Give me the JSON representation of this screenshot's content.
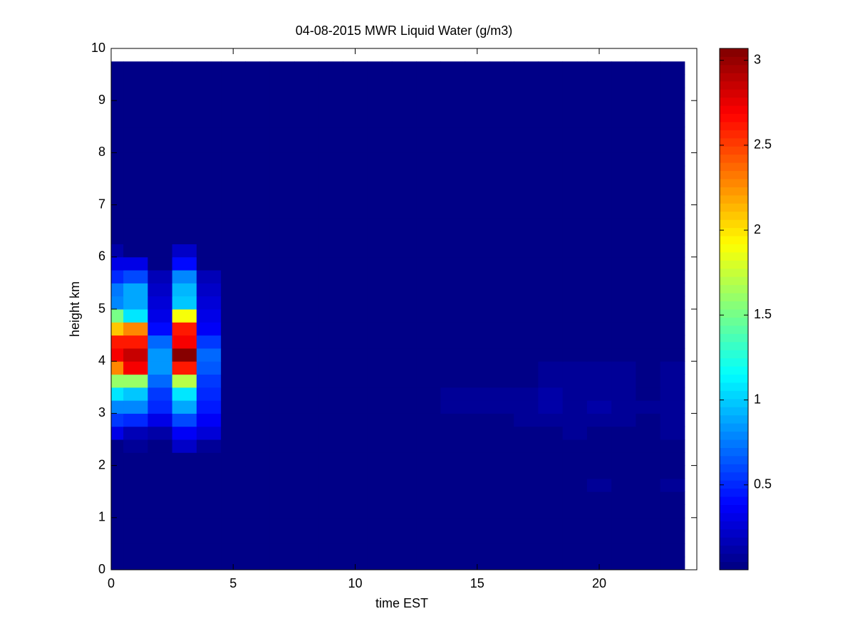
{
  "chart_data": {
    "type": "heatmap",
    "title": "04-08-2015 MWR Liquid Water (g/m3)",
    "xlabel": "time EST",
    "ylabel": "height km",
    "colormap": "jet",
    "clim": [
      0,
      3.07
    ],
    "cticks": [
      0.5,
      1,
      {
        "value": 1.5,
        "label": "1.5"
      },
      2,
      {
        "value": 2.5,
        "label": "2.5"
      },
      3
    ],
    "xlim": [
      0,
      24
    ],
    "xticks": [
      0,
      5,
      10,
      15,
      20
    ],
    "ylim": [
      0,
      10
    ],
    "yticks": [
      0,
      1,
      2,
      3,
      4,
      5,
      6,
      7,
      8,
      9,
      10
    ],
    "x": [
      0,
      1,
      2,
      3,
      4,
      5,
      6,
      7,
      8,
      9,
      10,
      11,
      12,
      13,
      14,
      15,
      16,
      17,
      18,
      19,
      20,
      21,
      22,
      23
    ],
    "y": [
      0.125,
      0.375,
      0.625,
      0.875,
      1.125,
      1.375,
      1.625,
      1.875,
      2.125,
      2.375,
      2.625,
      2.875,
      3.125,
      3.375,
      3.625,
      3.875,
      4.125,
      4.375,
      4.625,
      4.875,
      5.125,
      5.375,
      5.625,
      5.875,
      6.125,
      6.375,
      6.625,
      6.875,
      7.125,
      7.375,
      7.625,
      7.875,
      8.125,
      8.375,
      8.625,
      8.875,
      9.125,
      9.375,
      9.625
    ],
    "values": [
      [
        0.02,
        0.02,
        0.02,
        0.02,
        0.02,
        0.02,
        0.02,
        0.02,
        0.02,
        0.02,
        0.02,
        0.02,
        0.02,
        0.02,
        0.02,
        0.02,
        0.02,
        0.02,
        0.02,
        0.02,
        0.02,
        0.02,
        0.02,
        0.02
      ],
      [
        0.02,
        0.02,
        0.02,
        0.02,
        0.02,
        0.02,
        0.02,
        0.02,
        0.02,
        0.02,
        0.02,
        0.02,
        0.02,
        0.02,
        0.02,
        0.02,
        0.02,
        0.02,
        0.02,
        0.02,
        0.02,
        0.02,
        0.02,
        0.02
      ],
      [
        0.02,
        0.02,
        0.02,
        0.02,
        0.02,
        0.02,
        0.02,
        0.02,
        0.02,
        0.02,
        0.02,
        0.02,
        0.02,
        0.02,
        0.02,
        0.02,
        0.02,
        0.02,
        0.02,
        0.02,
        0.02,
        0.02,
        0.02,
        0.02
      ],
      [
        0.02,
        0.02,
        0.02,
        0.02,
        0.02,
        0.02,
        0.02,
        0.02,
        0.02,
        0.02,
        0.02,
        0.02,
        0.02,
        0.02,
        0.02,
        0.02,
        0.02,
        0.02,
        0.02,
        0.02,
        0.02,
        0.02,
        0.02,
        0.02
      ],
      [
        0.02,
        0.02,
        0.02,
        0.02,
        0.02,
        0.02,
        0.02,
        0.02,
        0.02,
        0.02,
        0.02,
        0.02,
        0.02,
        0.02,
        0.02,
        0.02,
        0.02,
        0.02,
        0.02,
        0.02,
        0.02,
        0.02,
        0.02,
        0.02
      ],
      [
        0.02,
        0.02,
        0.02,
        0.02,
        0.02,
        0.02,
        0.02,
        0.02,
        0.02,
        0.02,
        0.02,
        0.02,
        0.02,
        0.02,
        0.02,
        0.02,
        0.02,
        0.02,
        0.02,
        0.02,
        0.02,
        0.02,
        0.02,
        0.02
      ],
      [
        0.02,
        0.02,
        0.02,
        0.02,
        0.02,
        0.02,
        0.02,
        0.02,
        0.02,
        0.02,
        0.02,
        0.02,
        0.02,
        0.02,
        0.02,
        0.02,
        0.02,
        0.02,
        0.02,
        0.02,
        0.07,
        0.02,
        0.02,
        0.07
      ],
      [
        0.02,
        0.02,
        0.02,
        0.02,
        0.02,
        0.02,
        0.02,
        0.02,
        0.02,
        0.02,
        0.02,
        0.02,
        0.02,
        0.02,
        0.02,
        0.02,
        0.02,
        0.02,
        0.02,
        0.02,
        0.02,
        0.02,
        0.02,
        0.02
      ],
      [
        0.02,
        0.02,
        0.02,
        0.02,
        0.02,
        0.02,
        0.02,
        0.02,
        0.02,
        0.02,
        0.02,
        0.02,
        0.02,
        0.02,
        0.02,
        0.02,
        0.02,
        0.02,
        0.02,
        0.02,
        0.02,
        0.02,
        0.02,
        0.02
      ],
      [
        0.02,
        0.05,
        0.02,
        0.2,
        0.05,
        0.02,
        0.02,
        0.02,
        0.02,
        0.02,
        0.02,
        0.02,
        0.02,
        0.02,
        0.02,
        0.02,
        0.02,
        0.02,
        0.02,
        0.02,
        0.02,
        0.02,
        0.02,
        0.02
      ],
      [
        0.3,
        0.15,
        0.1,
        0.35,
        0.25,
        0.02,
        0.02,
        0.02,
        0.02,
        0.02,
        0.02,
        0.02,
        0.02,
        0.02,
        0.02,
        0.02,
        0.02,
        0.02,
        0.02,
        0.06,
        0.02,
        0.02,
        0.02,
        0.05
      ],
      [
        0.55,
        0.5,
        0.3,
        0.6,
        0.35,
        0.02,
        0.02,
        0.02,
        0.02,
        0.02,
        0.02,
        0.02,
        0.02,
        0.02,
        0.02,
        0.02,
        0.02,
        0.05,
        0.08,
        0.06,
        0.08,
        0.06,
        0.04,
        0.08
      ],
      [
        0.8,
        0.8,
        0.5,
        0.9,
        0.45,
        0.02,
        0.02,
        0.02,
        0.02,
        0.02,
        0.02,
        0.02,
        0.02,
        0.02,
        0.07,
        0.08,
        0.08,
        0.08,
        0.1,
        0.07,
        0.1,
        0.08,
        0.07,
        0.09
      ],
      [
        1.1,
        1.0,
        0.55,
        1.1,
        0.5,
        0.02,
        0.02,
        0.02,
        0.02,
        0.02,
        0.02,
        0.02,
        0.02,
        0.02,
        0.07,
        0.08,
        0.08,
        0.07,
        0.1,
        0.06,
        0.09,
        0.08,
        0.04,
        0.09
      ],
      [
        1.6,
        1.6,
        0.7,
        1.7,
        0.55,
        0.02,
        0.02,
        0.02,
        0.02,
        0.02,
        0.02,
        0.02,
        0.02,
        0.02,
        0.02,
        0.02,
        0.02,
        0.02,
        0.08,
        0.07,
        0.07,
        0.07,
        0.04,
        0.06
      ],
      [
        2.3,
        2.7,
        0.85,
        2.6,
        0.65,
        0.02,
        0.02,
        0.02,
        0.02,
        0.02,
        0.02,
        0.02,
        0.02,
        0.02,
        0.02,
        0.02,
        0.02,
        0.02,
        0.07,
        0.07,
        0.07,
        0.07,
        0.02,
        0.06
      ],
      [
        2.7,
        2.85,
        0.85,
        3.05,
        0.7,
        0.02,
        0.02,
        0.02,
        0.02,
        0.02,
        0.02,
        0.02,
        0.02,
        0.02,
        0.02,
        0.02,
        0.02,
        0.02,
        0.02,
        0.02,
        0.02,
        0.02,
        0.02,
        0.02
      ],
      [
        2.6,
        2.6,
        0.7,
        2.7,
        0.55,
        0.02,
        0.02,
        0.02,
        0.02,
        0.02,
        0.02,
        0.02,
        0.02,
        0.02,
        0.02,
        0.02,
        0.02,
        0.02,
        0.02,
        0.02,
        0.02,
        0.02,
        0.02,
        0.02
      ],
      [
        2.1,
        2.3,
        0.4,
        2.6,
        0.35,
        0.02,
        0.02,
        0.02,
        0.02,
        0.02,
        0.02,
        0.02,
        0.02,
        0.02,
        0.02,
        0.02,
        0.02,
        0.02,
        0.02,
        0.02,
        0.02,
        0.02,
        0.02,
        0.02
      ],
      [
        1.5,
        1.1,
        0.3,
        1.9,
        0.3,
        0.02,
        0.02,
        0.02,
        0.02,
        0.02,
        0.02,
        0.02,
        0.02,
        0.02,
        0.02,
        0.02,
        0.02,
        0.02,
        0.02,
        0.02,
        0.02,
        0.02,
        0.02,
        0.02
      ],
      [
        0.8,
        0.9,
        0.25,
        1.0,
        0.25,
        0.02,
        0.02,
        0.02,
        0.02,
        0.02,
        0.02,
        0.02,
        0.02,
        0.02,
        0.02,
        0.02,
        0.02,
        0.02,
        0.02,
        0.02,
        0.02,
        0.02,
        0.02,
        0.02
      ],
      [
        0.75,
        0.9,
        0.2,
        0.95,
        0.2,
        0.02,
        0.02,
        0.02,
        0.02,
        0.02,
        0.02,
        0.02,
        0.02,
        0.02,
        0.02,
        0.02,
        0.02,
        0.02,
        0.02,
        0.02,
        0.02,
        0.02,
        0.02,
        0.02
      ],
      [
        0.5,
        0.6,
        0.15,
        0.8,
        0.15,
        0.02,
        0.02,
        0.02,
        0.02,
        0.02,
        0.02,
        0.02,
        0.02,
        0.02,
        0.02,
        0.02,
        0.02,
        0.02,
        0.02,
        0.02,
        0.02,
        0.02,
        0.02,
        0.02
      ],
      [
        0.3,
        0.3,
        0.02,
        0.4,
        0.02,
        0.02,
        0.02,
        0.02,
        0.02,
        0.02,
        0.02,
        0.02,
        0.02,
        0.02,
        0.02,
        0.02,
        0.02,
        0.02,
        0.02,
        0.02,
        0.02,
        0.02,
        0.02,
        0.02
      ],
      [
        0.1,
        0.02,
        0.02,
        0.2,
        0.02,
        0.02,
        0.02,
        0.02,
        0.02,
        0.02,
        0.02,
        0.02,
        0.02,
        0.02,
        0.02,
        0.02,
        0.02,
        0.02,
        0.02,
        0.02,
        0.02,
        0.02,
        0.02,
        0.02
      ],
      [
        0.02,
        0.02,
        0.02,
        0.02,
        0.02,
        0.02,
        0.02,
        0.02,
        0.02,
        0.02,
        0.02,
        0.02,
        0.02,
        0.02,
        0.02,
        0.02,
        0.02,
        0.02,
        0.02,
        0.02,
        0.02,
        0.02,
        0.02,
        0.02
      ],
      [
        0.02,
        0.02,
        0.02,
        0.02,
        0.02,
        0.02,
        0.02,
        0.02,
        0.02,
        0.02,
        0.02,
        0.02,
        0.02,
        0.02,
        0.02,
        0.02,
        0.02,
        0.02,
        0.02,
        0.02,
        0.02,
        0.02,
        0.02,
        0.02
      ],
      [
        0.02,
        0.02,
        0.02,
        0.02,
        0.02,
        0.02,
        0.02,
        0.02,
        0.02,
        0.02,
        0.02,
        0.02,
        0.02,
        0.02,
        0.02,
        0.02,
        0.02,
        0.02,
        0.02,
        0.02,
        0.02,
        0.02,
        0.02,
        0.02
      ],
      [
        0.02,
        0.02,
        0.02,
        0.02,
        0.02,
        0.02,
        0.02,
        0.02,
        0.02,
        0.02,
        0.02,
        0.02,
        0.02,
        0.02,
        0.02,
        0.02,
        0.02,
        0.02,
        0.02,
        0.02,
        0.02,
        0.02,
        0.02,
        0.02
      ],
      [
        0.02,
        0.02,
        0.02,
        0.02,
        0.02,
        0.02,
        0.02,
        0.02,
        0.02,
        0.02,
        0.02,
        0.02,
        0.02,
        0.02,
        0.02,
        0.02,
        0.02,
        0.02,
        0.02,
        0.02,
        0.02,
        0.02,
        0.02,
        0.02
      ],
      [
        0.02,
        0.02,
        0.02,
        0.02,
        0.02,
        0.02,
        0.02,
        0.02,
        0.02,
        0.02,
        0.02,
        0.02,
        0.02,
        0.02,
        0.02,
        0.02,
        0.02,
        0.02,
        0.02,
        0.02,
        0.02,
        0.02,
        0.02,
        0.02
      ],
      [
        0.02,
        0.02,
        0.02,
        0.02,
        0.02,
        0.02,
        0.02,
        0.02,
        0.02,
        0.02,
        0.02,
        0.02,
        0.02,
        0.02,
        0.02,
        0.02,
        0.02,
        0.02,
        0.02,
        0.02,
        0.02,
        0.02,
        0.02,
        0.02
      ],
      [
        0.02,
        0.02,
        0.02,
        0.02,
        0.02,
        0.02,
        0.02,
        0.02,
        0.02,
        0.02,
        0.02,
        0.02,
        0.02,
        0.02,
        0.02,
        0.02,
        0.02,
        0.02,
        0.02,
        0.02,
        0.02,
        0.02,
        0.02,
        0.02
      ],
      [
        0.02,
        0.02,
        0.02,
        0.02,
        0.02,
        0.02,
        0.02,
        0.02,
        0.02,
        0.02,
        0.02,
        0.02,
        0.02,
        0.02,
        0.02,
        0.02,
        0.02,
        0.02,
        0.02,
        0.02,
        0.02,
        0.02,
        0.02,
        0.02
      ],
      [
        0.02,
        0.02,
        0.02,
        0.02,
        0.02,
        0.02,
        0.02,
        0.02,
        0.02,
        0.02,
        0.02,
        0.02,
        0.02,
        0.02,
        0.02,
        0.02,
        0.02,
        0.02,
        0.02,
        0.02,
        0.02,
        0.02,
        0.02,
        0.02
      ],
      [
        0.02,
        0.02,
        0.02,
        0.02,
        0.02,
        0.02,
        0.02,
        0.02,
        0.02,
        0.02,
        0.02,
        0.02,
        0.02,
        0.02,
        0.02,
        0.02,
        0.02,
        0.02,
        0.02,
        0.02,
        0.02,
        0.02,
        0.02,
        0.02
      ],
      [
        0.02,
        0.02,
        0.02,
        0.02,
        0.02,
        0.02,
        0.02,
        0.02,
        0.02,
        0.02,
        0.02,
        0.02,
        0.02,
        0.02,
        0.02,
        0.02,
        0.02,
        0.02,
        0.02,
        0.02,
        0.02,
        0.02,
        0.02,
        0.02
      ],
      [
        0.02,
        0.02,
        0.02,
        0.02,
        0.02,
        0.02,
        0.02,
        0.02,
        0.02,
        0.02,
        0.02,
        0.02,
        0.02,
        0.02,
        0.02,
        0.02,
        0.02,
        0.02,
        0.02,
        0.02,
        0.02,
        0.02,
        0.02,
        0.02
      ],
      [
        0.02,
        0.02,
        0.02,
        0.02,
        0.02,
        0.02,
        0.02,
        0.02,
        0.02,
        0.02,
        0.02,
        0.02,
        0.02,
        0.02,
        0.02,
        0.02,
        0.02,
        0.02,
        0.02,
        0.02,
        0.02,
        0.02,
        0.02,
        0.02
      ]
    ]
  }
}
